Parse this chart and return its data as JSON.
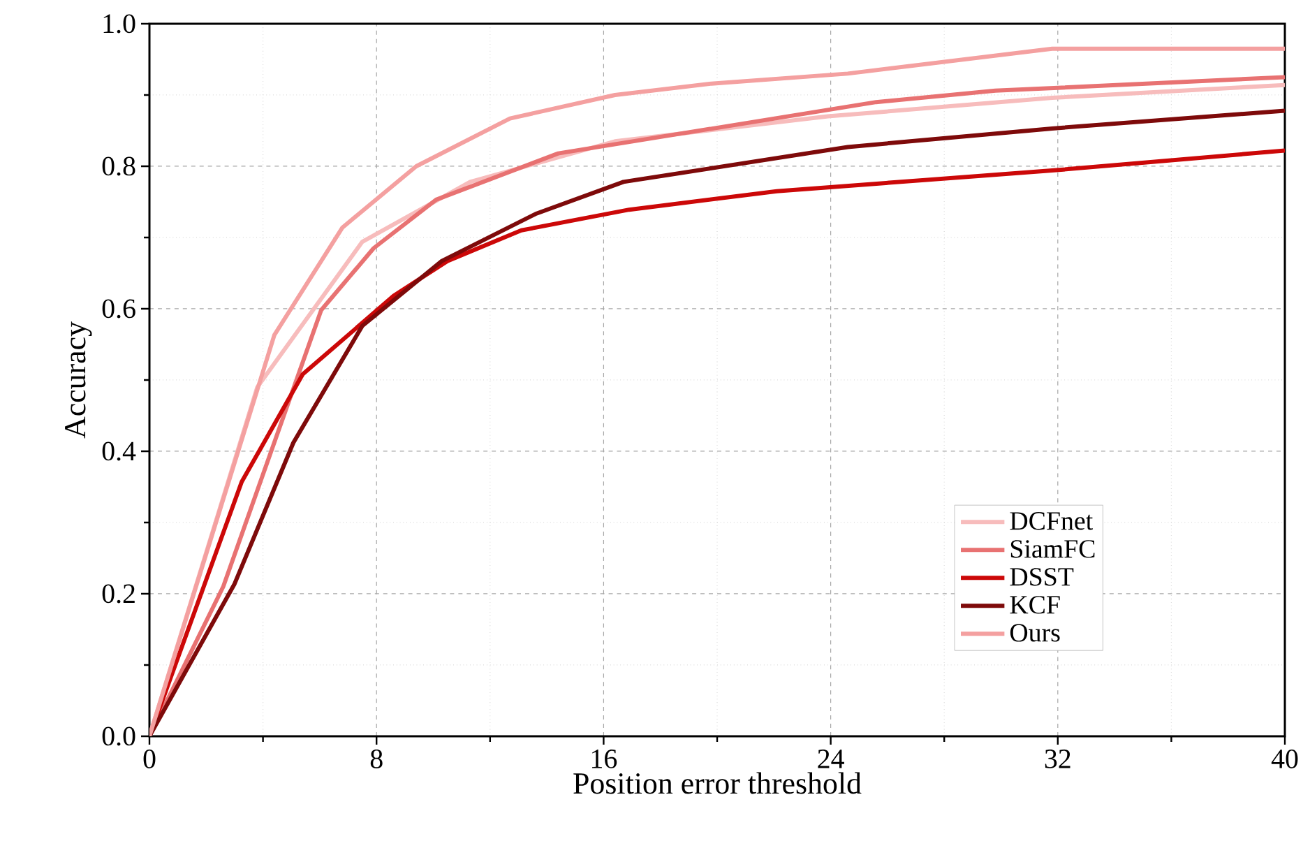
{
  "chart_data": {
    "type": "line",
    "xlabel": "Position error threshold",
    "ylabel": "Accuracy",
    "xlim": [
      0,
      40
    ],
    "ylim": [
      0,
      1.0
    ],
    "xticks": [
      0,
      8,
      16,
      24,
      32,
      40
    ],
    "yticks": [
      {
        "value": 0,
        "label": "0.0"
      },
      0.2,
      0.4,
      0.6,
      0.8,
      {
        "value": 1,
        "label": "1.0"
      }
    ],
    "grid": true,
    "legend": "bottom right",
    "marker": "none",
    "line_style": "solid",
    "series": [
      {
        "name": "DCFnet",
        "color": "#f7bcbc",
        "x": [
          0,
          3.8,
          7.5,
          11.3,
          16.4,
          23.9,
          31.8,
          40
        ],
        "values": [
          0,
          0.49,
          0.694,
          0.778,
          0.835,
          0.87,
          0.896,
          0.914
        ]
      },
      {
        "name": "SiamFC",
        "color": "#e87272",
        "x": [
          0,
          2.6,
          6.05,
          7.9,
          10.1,
          14.4,
          25.6,
          29.8,
          40
        ],
        "values": [
          0,
          0.21,
          0.598,
          0.685,
          0.753,
          0.818,
          0.89,
          0.906,
          0.925
        ]
      },
      {
        "name": "DSST",
        "color": "#cc0808",
        "x": [
          0,
          3.25,
          5.4,
          8.6,
          10.5,
          13.1,
          16.9,
          22.1,
          31.8,
          40
        ],
        "values": [
          0,
          0.357,
          0.508,
          0.618,
          0.667,
          0.71,
          0.739,
          0.765,
          0.794,
          0.822
        ]
      },
      {
        "name": "KCF",
        "color": "#7e0a0a",
        "x": [
          0,
          3.0,
          5.07,
          7.5,
          10.3,
          13.6,
          16.7,
          24.6,
          31.8,
          40
        ],
        "values": [
          0,
          0.214,
          0.412,
          0.576,
          0.667,
          0.733,
          0.778,
          0.827,
          0.853,
          0.878
        ]
      },
      {
        "name": "Ours",
        "color": "#f4a0a0",
        "x": [
          0,
          4.4,
          6.8,
          9.4,
          12.7,
          16.4,
          19.8,
          24.6,
          31.8,
          40
        ],
        "values": [
          0,
          0.563,
          0.714,
          0.8,
          0.867,
          0.9,
          0.916,
          0.93,
          0.965,
          0.965
        ]
      }
    ]
  }
}
